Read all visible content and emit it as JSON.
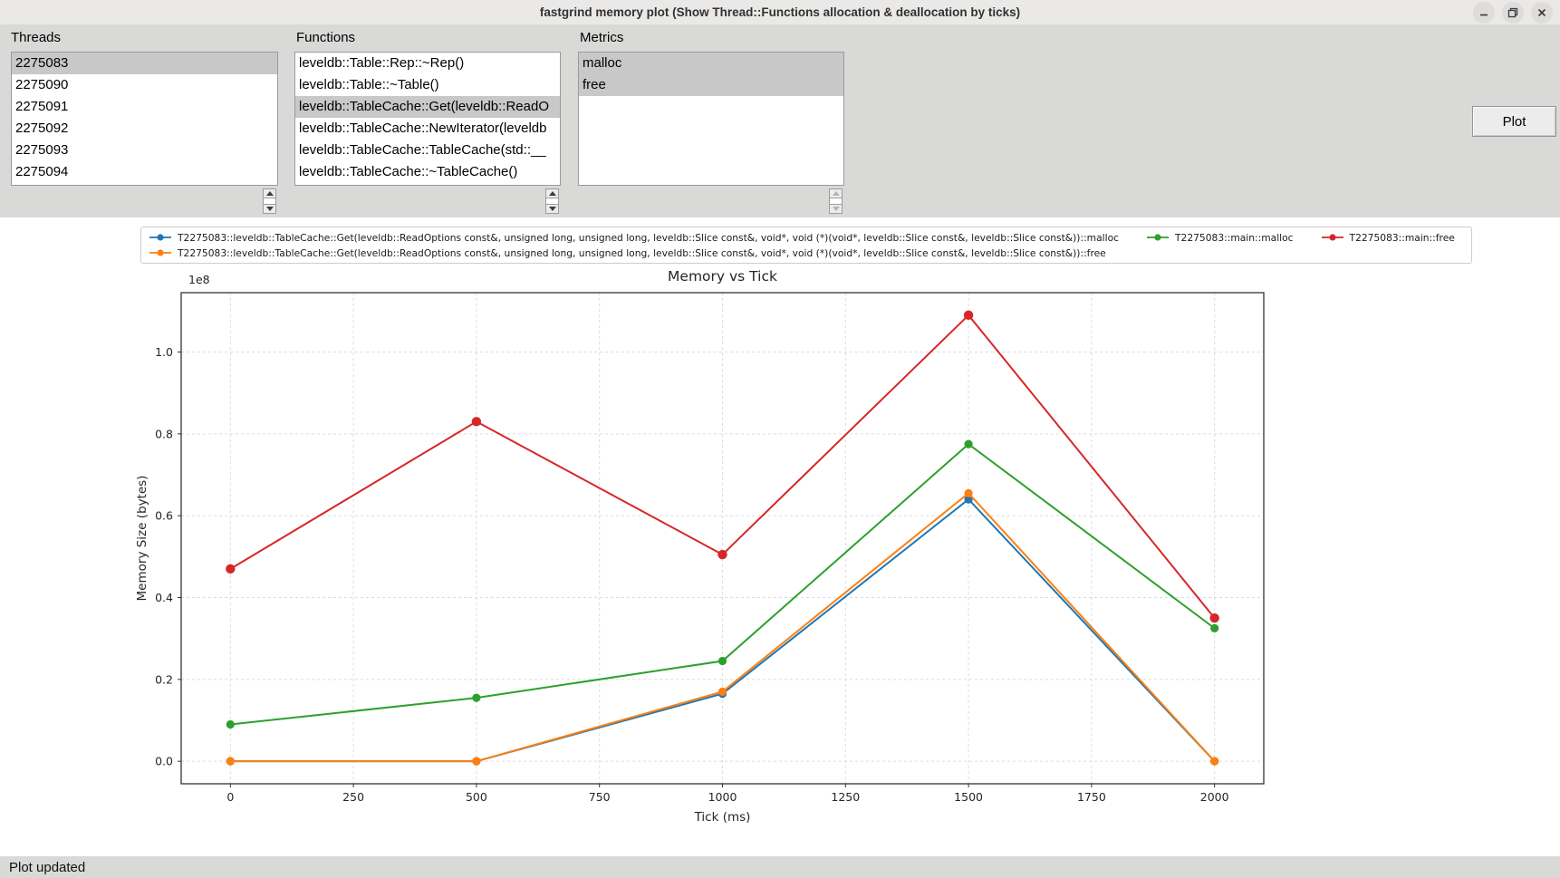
{
  "window": {
    "title": "fastgrind memory plot (Show Thread::Functions allocation & deallocation by ticks)"
  },
  "threads": {
    "label": "Threads",
    "items": [
      {
        "text": "2275083",
        "selected": true
      },
      {
        "text": "2275090",
        "selected": false
      },
      {
        "text": "2275091",
        "selected": false
      },
      {
        "text": "2275092",
        "selected": false
      },
      {
        "text": "2275093",
        "selected": false
      },
      {
        "text": "2275094",
        "selected": false
      }
    ]
  },
  "functions": {
    "label": "Functions",
    "items": [
      {
        "text": "leveldb::Table::Rep::~Rep()",
        "selected": false
      },
      {
        "text": "leveldb::Table::~Table()",
        "selected": false
      },
      {
        "text": "leveldb::TableCache::Get(leveldb::ReadO",
        "selected": true
      },
      {
        "text": "leveldb::TableCache::NewIterator(leveldb",
        "selected": false
      },
      {
        "text": "leveldb::TableCache::TableCache(std::__",
        "selected": false
      },
      {
        "text": "leveldb::TableCache::~TableCache()",
        "selected": false
      }
    ]
  },
  "metrics": {
    "label": "Metrics",
    "items": [
      {
        "text": "malloc",
        "selected": true
      },
      {
        "text": "free",
        "selected": true
      }
    ]
  },
  "plot_button_label": "Plot",
  "status_text": "Plot updated",
  "chart_data": {
    "type": "line",
    "title": "Memory vs Tick",
    "xlabel": "Tick (ms)",
    "ylabel": "Memory Size (bytes)",
    "y_scale_label": "1e8",
    "grid": true,
    "legend_position": "above-axes",
    "x": [
      0,
      500,
      1000,
      1500,
      2000
    ],
    "xticks": [
      0,
      250,
      500,
      750,
      1000,
      1250,
      1500,
      1750,
      2000
    ],
    "yticks": [
      0.0,
      0.2,
      0.4,
      0.6,
      0.8,
      1.0
    ],
    "xlim": [
      -100,
      2100
    ],
    "ylim_1e8": [
      -0.055,
      1.145
    ],
    "series": [
      {
        "name": "T2275083::leveldb::TableCache::Get(leveldb::ReadOptions const&, unsigned long, unsigned long, leveldb::Slice const&, void*, void (*)(void*, leveldb::Slice const&, leveldb::Slice const&))::malloc",
        "color": "#1f77b4",
        "values_1e8": [
          0.0,
          0.0,
          0.165,
          0.64,
          0.0
        ]
      },
      {
        "name": "T2275083::leveldb::TableCache::Get(leveldb::ReadOptions const&, unsigned long, unsigned long, leveldb::Slice const&, void*, void (*)(void*, leveldb::Slice const&, leveldb::Slice const&))::free",
        "color": "#ff7f0e",
        "values_1e8": [
          0.0,
          0.0,
          0.17,
          0.655,
          0.0
        ]
      },
      {
        "name": "T2275083::main::malloc",
        "color": "#2ca02c",
        "values_1e8": [
          0.09,
          0.155,
          0.245,
          0.775,
          0.325
        ]
      },
      {
        "name": "T2275083::main::free",
        "color": "#d62728",
        "values_1e8": [
          0.47,
          0.83,
          0.505,
          1.09,
          0.35
        ]
      }
    ]
  }
}
